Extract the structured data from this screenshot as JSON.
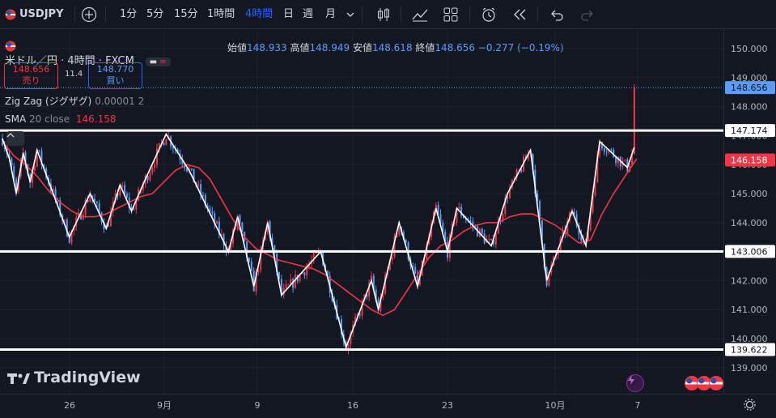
{
  "toolbar": {
    "symbol": "USDJPY",
    "intervals": [
      "1分",
      "5分",
      "15分",
      "1時間",
      "4時間",
      "日",
      "週",
      "月"
    ],
    "active_interval": "4時間",
    "icons": [
      "add-symbol-icon",
      "chevron-down-icon",
      "candles-icon",
      "indicators-icon",
      "layout-icon",
      "alert-icon",
      "replay-icon",
      "undo-icon",
      "redo-icon"
    ]
  },
  "legend": {
    "title": "米ドル／円 · 4時間 · FXCM",
    "ohlc": [
      {
        "label": "始値",
        "value": "148.933"
      },
      {
        "label": "高値",
        "value": "148.949"
      },
      {
        "label": "安値",
        "value": "148.618"
      },
      {
        "label": "終値",
        "value": "148.656"
      }
    ],
    "change": "−0.277 (−0.19%)",
    "sell_price": "148.656",
    "sell_label": "売り",
    "spread": "11.4",
    "buy_price": "148.770",
    "buy_label": "買い",
    "zigzag_name": "Zig Zag (ジグザグ)",
    "zigzag_params": "0.00001 2",
    "sma_name": "SMA",
    "sma_params": "20 close",
    "sma_value": "146.158"
  },
  "colors": {
    "background": "#131722",
    "up": "#f23645",
    "down": "#5b9cf6",
    "sma": "#f23645",
    "zigzag": "#ffffff",
    "accent": "#2962ff"
  },
  "price_tags": [
    {
      "value": "148.656",
      "type": "price"
    },
    {
      "value": "147.174",
      "type": "line"
    },
    {
      "value": "146.158",
      "type": "sma"
    },
    {
      "value": "143.006",
      "type": "line"
    },
    {
      "value": "139.622",
      "type": "line"
    }
  ],
  "watermark": "TradingView",
  "chart_data": {
    "type": "candlestick",
    "ylim": [
      138.6,
      150.5
    ],
    "y_ticks": [
      139.0,
      140.0,
      141.0,
      142.0,
      143.0,
      144.0,
      145.0,
      146.0,
      147.0,
      148.0,
      149.0,
      150.0
    ],
    "x_ticks": [
      "26",
      "9月",
      "9",
      "16",
      "23",
      "10月",
      "7"
    ],
    "horizontal_lines": [
      147.174,
      143.006,
      139.622
    ],
    "last_price": 148.656,
    "zigzag": [
      [
        0,
        146.9
      ],
      [
        3,
        146.2
      ],
      [
        6,
        145.0
      ],
      [
        9,
        146.4
      ],
      [
        12,
        145.4
      ],
      [
        15,
        146.5
      ],
      [
        29,
        143.5
      ],
      [
        38,
        145.0
      ],
      [
        45,
        143.8
      ],
      [
        51,
        145.3
      ],
      [
        56,
        144.4
      ],
      [
        62,
        145.5
      ],
      [
        71,
        147.05
      ],
      [
        81,
        145.8
      ],
      [
        98,
        143.0
      ],
      [
        102,
        144.2
      ],
      [
        109,
        141.8
      ],
      [
        115,
        144.0
      ],
      [
        121,
        141.5
      ],
      [
        138,
        143.0
      ],
      [
        149,
        139.7
      ],
      [
        160,
        142.0
      ],
      [
        163,
        141.0
      ],
      [
        172,
        144.0
      ],
      [
        180,
        141.8
      ],
      [
        188,
        144.5
      ],
      [
        193,
        143.0
      ],
      [
        197,
        144.5
      ],
      [
        212,
        143.2
      ],
      [
        219,
        145.0
      ],
      [
        229,
        146.5
      ],
      [
        236,
        142.0
      ],
      [
        247,
        144.4
      ],
      [
        253,
        143.2
      ],
      [
        259,
        146.8
      ],
      [
        271,
        145.9
      ],
      [
        274,
        146.6
      ]
    ],
    "sma20": [
      [
        0,
        146.8
      ],
      [
        5,
        146.3
      ],
      [
        10,
        146.0
      ],
      [
        15,
        145.6
      ],
      [
        20,
        145.1
      ],
      [
        25,
        144.7
      ],
      [
        30,
        144.4
      ],
      [
        35,
        144.2
      ],
      [
        40,
        144.2
      ],
      [
        45,
        144.3
      ],
      [
        50,
        144.5
      ],
      [
        55,
        144.7
      ],
      [
        60,
        144.9
      ],
      [
        65,
        145.0
      ],
      [
        70,
        145.4
      ],
      [
        75,
        145.8
      ],
      [
        80,
        146.0
      ],
      [
        85,
        145.9
      ],
      [
        90,
        145.5
      ],
      [
        95,
        144.8
      ],
      [
        100,
        144.1
      ],
      [
        105,
        143.5
      ],
      [
        110,
        143.1
      ],
      [
        115,
        142.9
      ],
      [
        120,
        142.7
      ],
      [
        125,
        142.6
      ],
      [
        130,
        142.5
      ],
      [
        135,
        142.4
      ],
      [
        140,
        142.2
      ],
      [
        145,
        141.9
      ],
      [
        150,
        141.6
      ],
      [
        155,
        141.3
      ],
      [
        160,
        141.0
      ],
      [
        165,
        140.8
      ],
      [
        170,
        141.0
      ],
      [
        175,
        141.6
      ],
      [
        180,
        142.2
      ],
      [
        185,
        142.8
      ],
      [
        190,
        143.2
      ],
      [
        195,
        143.4
      ],
      [
        200,
        143.7
      ],
      [
        205,
        143.9
      ],
      [
        210,
        144.0
      ],
      [
        215,
        144.0
      ],
      [
        220,
        144.2
      ],
      [
        225,
        144.3
      ],
      [
        230,
        144.3
      ],
      [
        235,
        144.1
      ],
      [
        240,
        143.9
      ],
      [
        245,
        143.6
      ],
      [
        250,
        143.3
      ],
      [
        255,
        143.4
      ],
      [
        260,
        144.3
      ],
      [
        265,
        145.0
      ],
      [
        270,
        145.6
      ],
      [
        275,
        146.2
      ]
    ]
  }
}
